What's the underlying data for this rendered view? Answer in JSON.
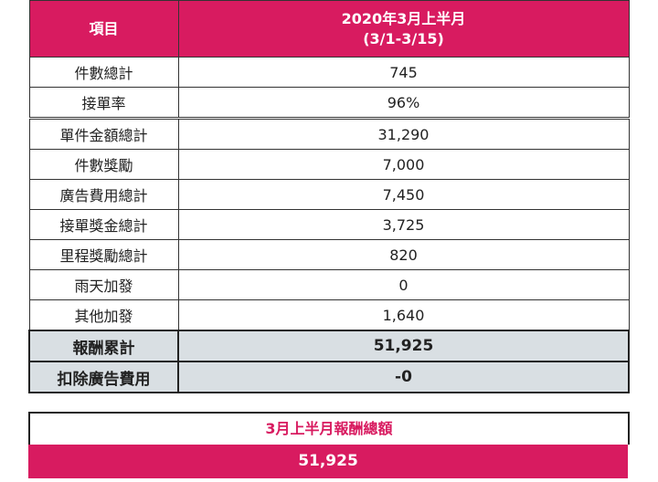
{
  "header": {
    "col1": "項目",
    "col2_line1": "2020年3月上半月",
    "col2_line2": "(3/1-3/15)"
  },
  "rows": [
    {
      "label": "件數總計",
      "value": "745"
    },
    {
      "label": "接單率",
      "value": "96%"
    },
    {
      "label": "單件金額總計",
      "value": "31,290"
    },
    {
      "label": "件數獎勵",
      "value": "7,000"
    },
    {
      "label": "廣告費用總計",
      "value": "7,450"
    },
    {
      "label": "接單獎金總計",
      "value": "3,725"
    },
    {
      "label": "里程獎勵總計",
      "value": "820"
    },
    {
      "label": "雨天加發",
      "value": "0"
    },
    {
      "label": "其他加發",
      "value": "1,640"
    }
  ],
  "summary": [
    {
      "label": "報酬累計",
      "value": "51,925"
    },
    {
      "label": "扣除廣告費用",
      "value": "-0"
    }
  ],
  "total": {
    "title": "3月上半月報酬總額",
    "value": "51,925"
  },
  "colors": {
    "accent": "#d81b60",
    "summary_bg": "#d9dfe3"
  }
}
